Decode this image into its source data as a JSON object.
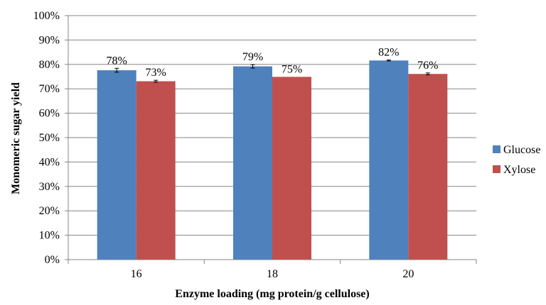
{
  "chart_data": {
    "type": "bar",
    "title": "",
    "xlabel": "Enzyme loading (mg protein/g cellulose)",
    "ylabel": "Monomeric sugar yield",
    "categories": [
      "16",
      "18",
      "20"
    ],
    "ylim": [
      0,
      100
    ],
    "yticks": [
      0,
      10,
      20,
      30,
      40,
      50,
      60,
      70,
      80,
      90,
      100
    ],
    "ytick_labels": [
      "0%",
      "10%",
      "20%",
      "30%",
      "40%",
      "50%",
      "60%",
      "70%",
      "80%",
      "90%",
      "100%"
    ],
    "grid": true,
    "legend_position": "right",
    "series": [
      {
        "name": "Glucose",
        "color": "#4F81BD",
        "values": [
          77.6,
          79.2,
          81.6
        ],
        "errors": [
          0.8,
          0.7,
          0.2
        ],
        "data_labels": [
          "78%",
          "79%",
          "82%"
        ]
      },
      {
        "name": "Xylose",
        "color": "#C0504D",
        "values": [
          73.1,
          74.9,
          76.1
        ],
        "errors": [
          0.4,
          0.0,
          0.4
        ],
        "data_labels": [
          "73%",
          "75%",
          "76%"
        ]
      }
    ]
  }
}
